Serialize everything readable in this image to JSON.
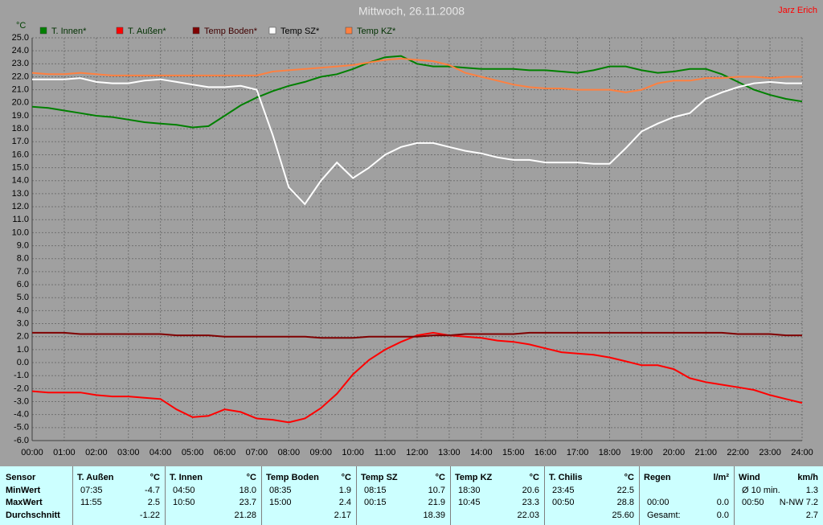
{
  "chart_data": {
    "type": "line",
    "title": "Mittwoch, 26.11.2008",
    "author": "Jarz Erich",
    "y_label": "°C",
    "grid": true,
    "xlim": [
      0,
      24
    ],
    "ylim": [
      -6,
      25
    ],
    "xticks": [
      {
        "value": 0,
        "label": "00:00"
      },
      {
        "value": 1,
        "label": "01:00"
      },
      {
        "value": 2,
        "label": "02:00"
      },
      {
        "value": 3,
        "label": "03:00"
      },
      {
        "value": 4,
        "label": "04:00"
      },
      {
        "value": 5,
        "label": "05:00"
      },
      {
        "value": 6,
        "label": "06:00"
      },
      {
        "value": 7,
        "label": "07:00"
      },
      {
        "value": 8,
        "label": "08:00"
      },
      {
        "value": 9,
        "label": "09:00"
      },
      {
        "value": 10,
        "label": "10:00"
      },
      {
        "value": 11,
        "label": "11:00"
      },
      {
        "value": 12,
        "label": "12:00"
      },
      {
        "value": 13,
        "label": "13:00"
      },
      {
        "value": 14,
        "label": "14:00"
      },
      {
        "value": 15,
        "label": "15:00"
      },
      {
        "value": 16,
        "label": "16:00"
      },
      {
        "value": 17,
        "label": "17:00"
      },
      {
        "value": 18,
        "label": "18:00"
      },
      {
        "value": 19,
        "label": "19:00"
      },
      {
        "value": 20,
        "label": "20:00"
      },
      {
        "value": 21,
        "label": "21:00"
      },
      {
        "value": 22,
        "label": "22:00"
      },
      {
        "value": 23,
        "label": "23:00"
      },
      {
        "value": 24,
        "label": "24:00"
      }
    ],
    "yticks": [
      {
        "value": 25,
        "label": "25.0"
      },
      {
        "value": 24,
        "label": "24.0"
      },
      {
        "value": 23,
        "label": "23.0"
      },
      {
        "value": 22,
        "label": "22.0"
      },
      {
        "value": 21,
        "label": "21.0"
      },
      {
        "value": 20,
        "label": "20.0"
      },
      {
        "value": 19,
        "label": "19.0"
      },
      {
        "value": 18,
        "label": "18.0"
      },
      {
        "value": 17,
        "label": "17.0"
      },
      {
        "value": 16,
        "label": "16.0"
      },
      {
        "value": 15,
        "label": "15.0"
      },
      {
        "value": 14,
        "label": "14.0"
      },
      {
        "value": 13,
        "label": "13.0"
      },
      {
        "value": 12,
        "label": "12.0"
      },
      {
        "value": 11,
        "label": "11.0"
      },
      {
        "value": 10,
        "label": "10.0"
      },
      {
        "value": 9,
        "label": "9.0"
      },
      {
        "value": 8,
        "label": "8.0"
      },
      {
        "value": 7,
        "label": "7.0"
      },
      {
        "value": 6,
        "label": "6.0"
      },
      {
        "value": 5,
        "label": "5.0"
      },
      {
        "value": 4,
        "label": "4.0"
      },
      {
        "value": 3,
        "label": "3.0"
      },
      {
        "value": 2,
        "label": "2.0"
      },
      {
        "value": 1,
        "label": "1.0"
      },
      {
        "value": 0,
        "label": "0.0"
      },
      {
        "value": -1,
        "label": "-1.0"
      },
      {
        "value": -2,
        "label": "-2.0"
      },
      {
        "value": -3,
        "label": "-3.0"
      },
      {
        "value": -4,
        "label": "-4.0"
      },
      {
        "value": -5,
        "label": "-5.0"
      },
      {
        "value": -6,
        "label": "-6.0"
      }
    ],
    "x": [
      0,
      0.5,
      1,
      1.5,
      2,
      2.5,
      3,
      3.5,
      4,
      4.5,
      5,
      5.5,
      6,
      6.5,
      7,
      7.5,
      8,
      8.5,
      9,
      9.5,
      10,
      10.5,
      11,
      11.5,
      12,
      12.5,
      13,
      13.5,
      14,
      14.5,
      15,
      15.5,
      16,
      16.5,
      17,
      17.5,
      18,
      18.5,
      19,
      19.5,
      20,
      20.5,
      21,
      21.5,
      22,
      22.5,
      23,
      23.5,
      24
    ],
    "series": [
      {
        "name": "T. Innen*",
        "color": "#008000",
        "values": [
          19.7,
          19.6,
          19.4,
          19.2,
          19.0,
          18.9,
          18.7,
          18.5,
          18.4,
          18.3,
          18.1,
          18.2,
          19.0,
          19.8,
          20.4,
          20.9,
          21.3,
          21.6,
          22.0,
          22.2,
          22.6,
          23.1,
          23.5,
          23.6,
          23.0,
          22.8,
          22.8,
          22.7,
          22.6,
          22.6,
          22.6,
          22.5,
          22.5,
          22.4,
          22.3,
          22.5,
          22.8,
          22.8,
          22.5,
          22.3,
          22.4,
          22.6,
          22.6,
          22.2,
          21.6,
          21.0,
          20.6,
          20.3,
          20.1
        ]
      },
      {
        "name": "T. Außen*",
        "color": "#ff0000",
        "values": [
          -2.2,
          -2.3,
          -2.3,
          -2.3,
          -2.5,
          -2.6,
          -2.6,
          -2.7,
          -2.8,
          -3.6,
          -4.2,
          -4.1,
          -3.6,
          -3.8,
          -4.3,
          -4.4,
          -4.6,
          -4.3,
          -3.5,
          -2.4,
          -0.9,
          0.2,
          1.0,
          1.6,
          2.1,
          2.3,
          2.1,
          2.0,
          1.9,
          1.7,
          1.6,
          1.4,
          1.1,
          0.8,
          0.7,
          0.6,
          0.4,
          0.1,
          -0.2,
          -0.2,
          -0.5,
          -1.2,
          -1.5,
          -1.7,
          -1.9,
          -2.1,
          -2.5,
          -2.8,
          -3.1
        ]
      },
      {
        "name": "Temp Boden*",
        "color": "#800000",
        "values": [
          2.3,
          2.3,
          2.3,
          2.2,
          2.2,
          2.2,
          2.2,
          2.2,
          2.2,
          2.1,
          2.1,
          2.1,
          2.0,
          2.0,
          2.0,
          2.0,
          2.0,
          2.0,
          1.9,
          1.9,
          1.9,
          2.0,
          2.0,
          2.0,
          2.0,
          2.1,
          2.1,
          2.2,
          2.2,
          2.2,
          2.2,
          2.3,
          2.3,
          2.3,
          2.3,
          2.3,
          2.3,
          2.3,
          2.3,
          2.3,
          2.3,
          2.3,
          2.3,
          2.3,
          2.2,
          2.2,
          2.2,
          2.1,
          2.1
        ]
      },
      {
        "name": "Temp SZ*",
        "color": "#ffffff",
        "values": [
          21.8,
          21.8,
          21.8,
          21.9,
          21.6,
          21.5,
          21.5,
          21.7,
          21.8,
          21.6,
          21.4,
          21.2,
          21.2,
          21.3,
          21.0,
          17.5,
          13.5,
          12.2,
          14.0,
          15.4,
          14.2,
          15.0,
          16.0,
          16.6,
          16.9,
          16.9,
          16.6,
          16.3,
          16.1,
          15.8,
          15.6,
          15.6,
          15.4,
          15.4,
          15.4,
          15.3,
          15.3,
          16.5,
          17.8,
          18.4,
          18.9,
          19.2,
          20.3,
          20.8,
          21.2,
          21.5,
          21.6,
          21.5,
          21.5
        ]
      },
      {
        "name": "Temp KZ*",
        "color": "#ff8040",
        "values": [
          22.3,
          22.2,
          22.2,
          22.3,
          22.2,
          22.1,
          22.1,
          22.1,
          22.1,
          22.1,
          22.1,
          22.1,
          22.1,
          22.1,
          22.1,
          22.4,
          22.5,
          22.6,
          22.7,
          22.8,
          22.9,
          23.1,
          23.3,
          23.4,
          23.3,
          23.2,
          22.9,
          22.3,
          22.0,
          21.7,
          21.4,
          21.2,
          21.1,
          21.1,
          21.0,
          21.0,
          21.0,
          20.8,
          21.0,
          21.5,
          21.7,
          21.7,
          21.9,
          21.9,
          22.0,
          22.0,
          21.9,
          22.0,
          22.0
        ]
      }
    ]
  },
  "table": {
    "labels": [
      "Sensor",
      "MinWert",
      "MaxWert",
      "Durchschnitt"
    ],
    "sections": [
      {
        "header": [
          "T. Außen",
          "°C"
        ],
        "min": [
          "07:35",
          "-4.7"
        ],
        "max": [
          "11:55",
          "2.5"
        ],
        "avg": [
          "-1.22"
        ]
      },
      {
        "header": [
          "T. Innen",
          "°C"
        ],
        "min": [
          "04:50",
          "18.0"
        ],
        "max": [
          "10:50",
          "23.7"
        ],
        "avg": [
          "21.28"
        ]
      },
      {
        "header": [
          "Temp Boden",
          "°C"
        ],
        "min": [
          "08:35",
          "1.9"
        ],
        "max": [
          "15:00",
          "2.4"
        ],
        "avg": [
          "2.17"
        ]
      },
      {
        "header": [
          "Temp SZ",
          "°C"
        ],
        "min": [
          "08:15",
          "10.7"
        ],
        "max": [
          "00:15",
          "21.9"
        ],
        "avg": [
          "18.39"
        ]
      },
      {
        "header": [
          "Temp KZ",
          "°C"
        ],
        "min": [
          "18:30",
          "20.6"
        ],
        "max": [
          "10:45",
          "23.3"
        ],
        "avg": [
          "22.03"
        ]
      },
      {
        "header": [
          "T. Chilis",
          "°C"
        ],
        "min": [
          "23:45",
          "22.5"
        ],
        "max": [
          "00:50",
          "28.8"
        ],
        "avg": [
          "25.60"
        ]
      },
      {
        "header": [
          "Regen",
          "l/m²"
        ],
        "max": [
          "00:00",
          "0.0"
        ],
        "avg": [
          "Gesamt:",
          "0.0"
        ]
      },
      {
        "header": [
          "Wind",
          "km/h"
        ],
        "min": [
          "Ø 10 min.",
          "1.3"
        ],
        "max": [
          "00:50",
          "N-NW 7.2"
        ],
        "avg": [
          "2.7"
        ]
      }
    ]
  }
}
